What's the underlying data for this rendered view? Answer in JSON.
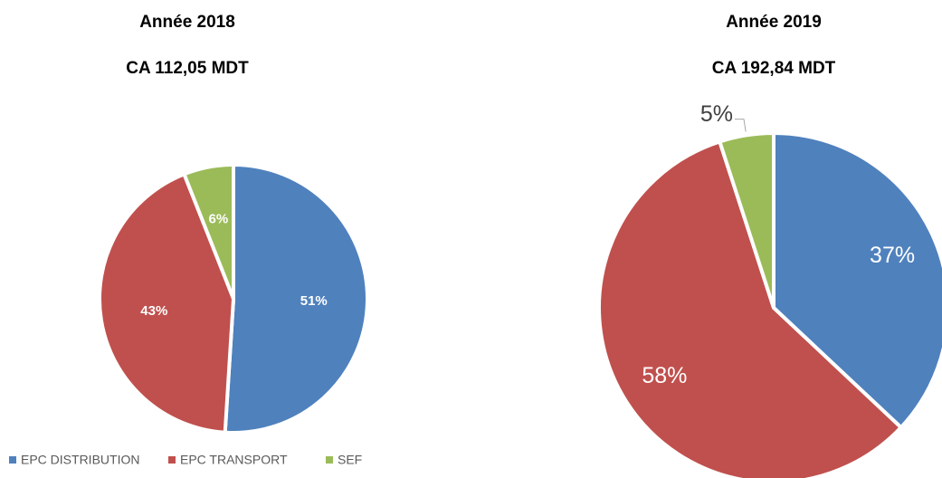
{
  "chart_data": [
    {
      "type": "pie",
      "title": "Année 2018",
      "subtitle": "CA 112,05 MDT",
      "categories": [
        "EPC DISTRIBUTION",
        "EPC TRANSPORT",
        "SEF"
      ],
      "values": [
        51,
        43,
        6
      ],
      "value_labels": [
        "51%",
        "43%",
        "6%"
      ],
      "colors": [
        "#4f81bd",
        "#c0504d",
        "#9bbb59"
      ],
      "legend": "bottom"
    },
    {
      "type": "pie",
      "title": "Année 2019",
      "subtitle": "CA 192,84 MDT",
      "categories": [
        "EPC DISTRIBUTION",
        "EPC TRANSPORT",
        "SEF"
      ],
      "values": [
        37,
        58,
        5
      ],
      "value_labels": [
        "37%",
        "58%",
        "5%"
      ],
      "colors": [
        "#4f81bd",
        "#c0504d",
        "#9bbb59"
      ]
    }
  ]
}
